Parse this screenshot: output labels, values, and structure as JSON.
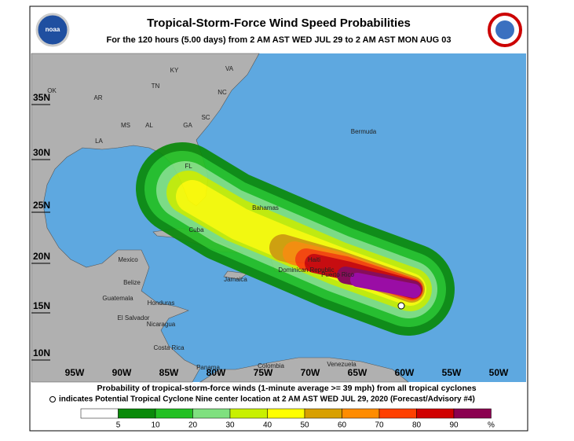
{
  "header": {
    "title": "Tropical-Storm-Force Wind Speed Probabilities",
    "subtitle": "For the 120 hours (5.00 days) from 2 AM AST WED JUL 29 to 2 AM AST MON AUG 03",
    "logo": "noaa"
  },
  "map": {
    "lat_labels": [
      "35N",
      "30N",
      "25N",
      "20N",
      "15N",
      "10N"
    ],
    "lon_labels": [
      "95W",
      "90W",
      "85W",
      "80W",
      "75W",
      "70W",
      "65W",
      "60W",
      "55W",
      "50W"
    ],
    "places": [
      "KY",
      "VA",
      "TN",
      "NC",
      "OK",
      "AR",
      "SC",
      "MS",
      "AL",
      "GA",
      "LA",
      "FL",
      "Bermuda",
      "Bahamas",
      "Cuba",
      "Mexico",
      "Belize",
      "Jamaica",
      "Guatemala",
      "Honduras",
      "El Salvador",
      "Nicaragua",
      "Costa Rica",
      "Panama",
      "Colombia",
      "Venezuela",
      "Haiti",
      "Dominican Republic",
      "Puerto Rico"
    ]
  },
  "footer": {
    "line1": "Probability of tropical-storm-force winds (1-minute average >= 39 mph) from all tropical cyclones",
    "line2": "indicates Potential Tropical Cyclone Nine center location at 2 AM AST WED JUL 29, 2020 (Forecast/Advisory #4)"
  },
  "legend": {
    "colors": [
      "#ffffff",
      "#0a8a0a",
      "#23c023",
      "#7fe07f",
      "#c8f000",
      "#ffff00",
      "#d8a000",
      "#ff8c00",
      "#ff4000",
      "#d00000",
      "#8b0050",
      "#a000a0"
    ],
    "ticks": [
      5,
      10,
      20,
      30,
      40,
      50,
      60,
      70,
      80,
      90
    ],
    "unit": "%"
  }
}
